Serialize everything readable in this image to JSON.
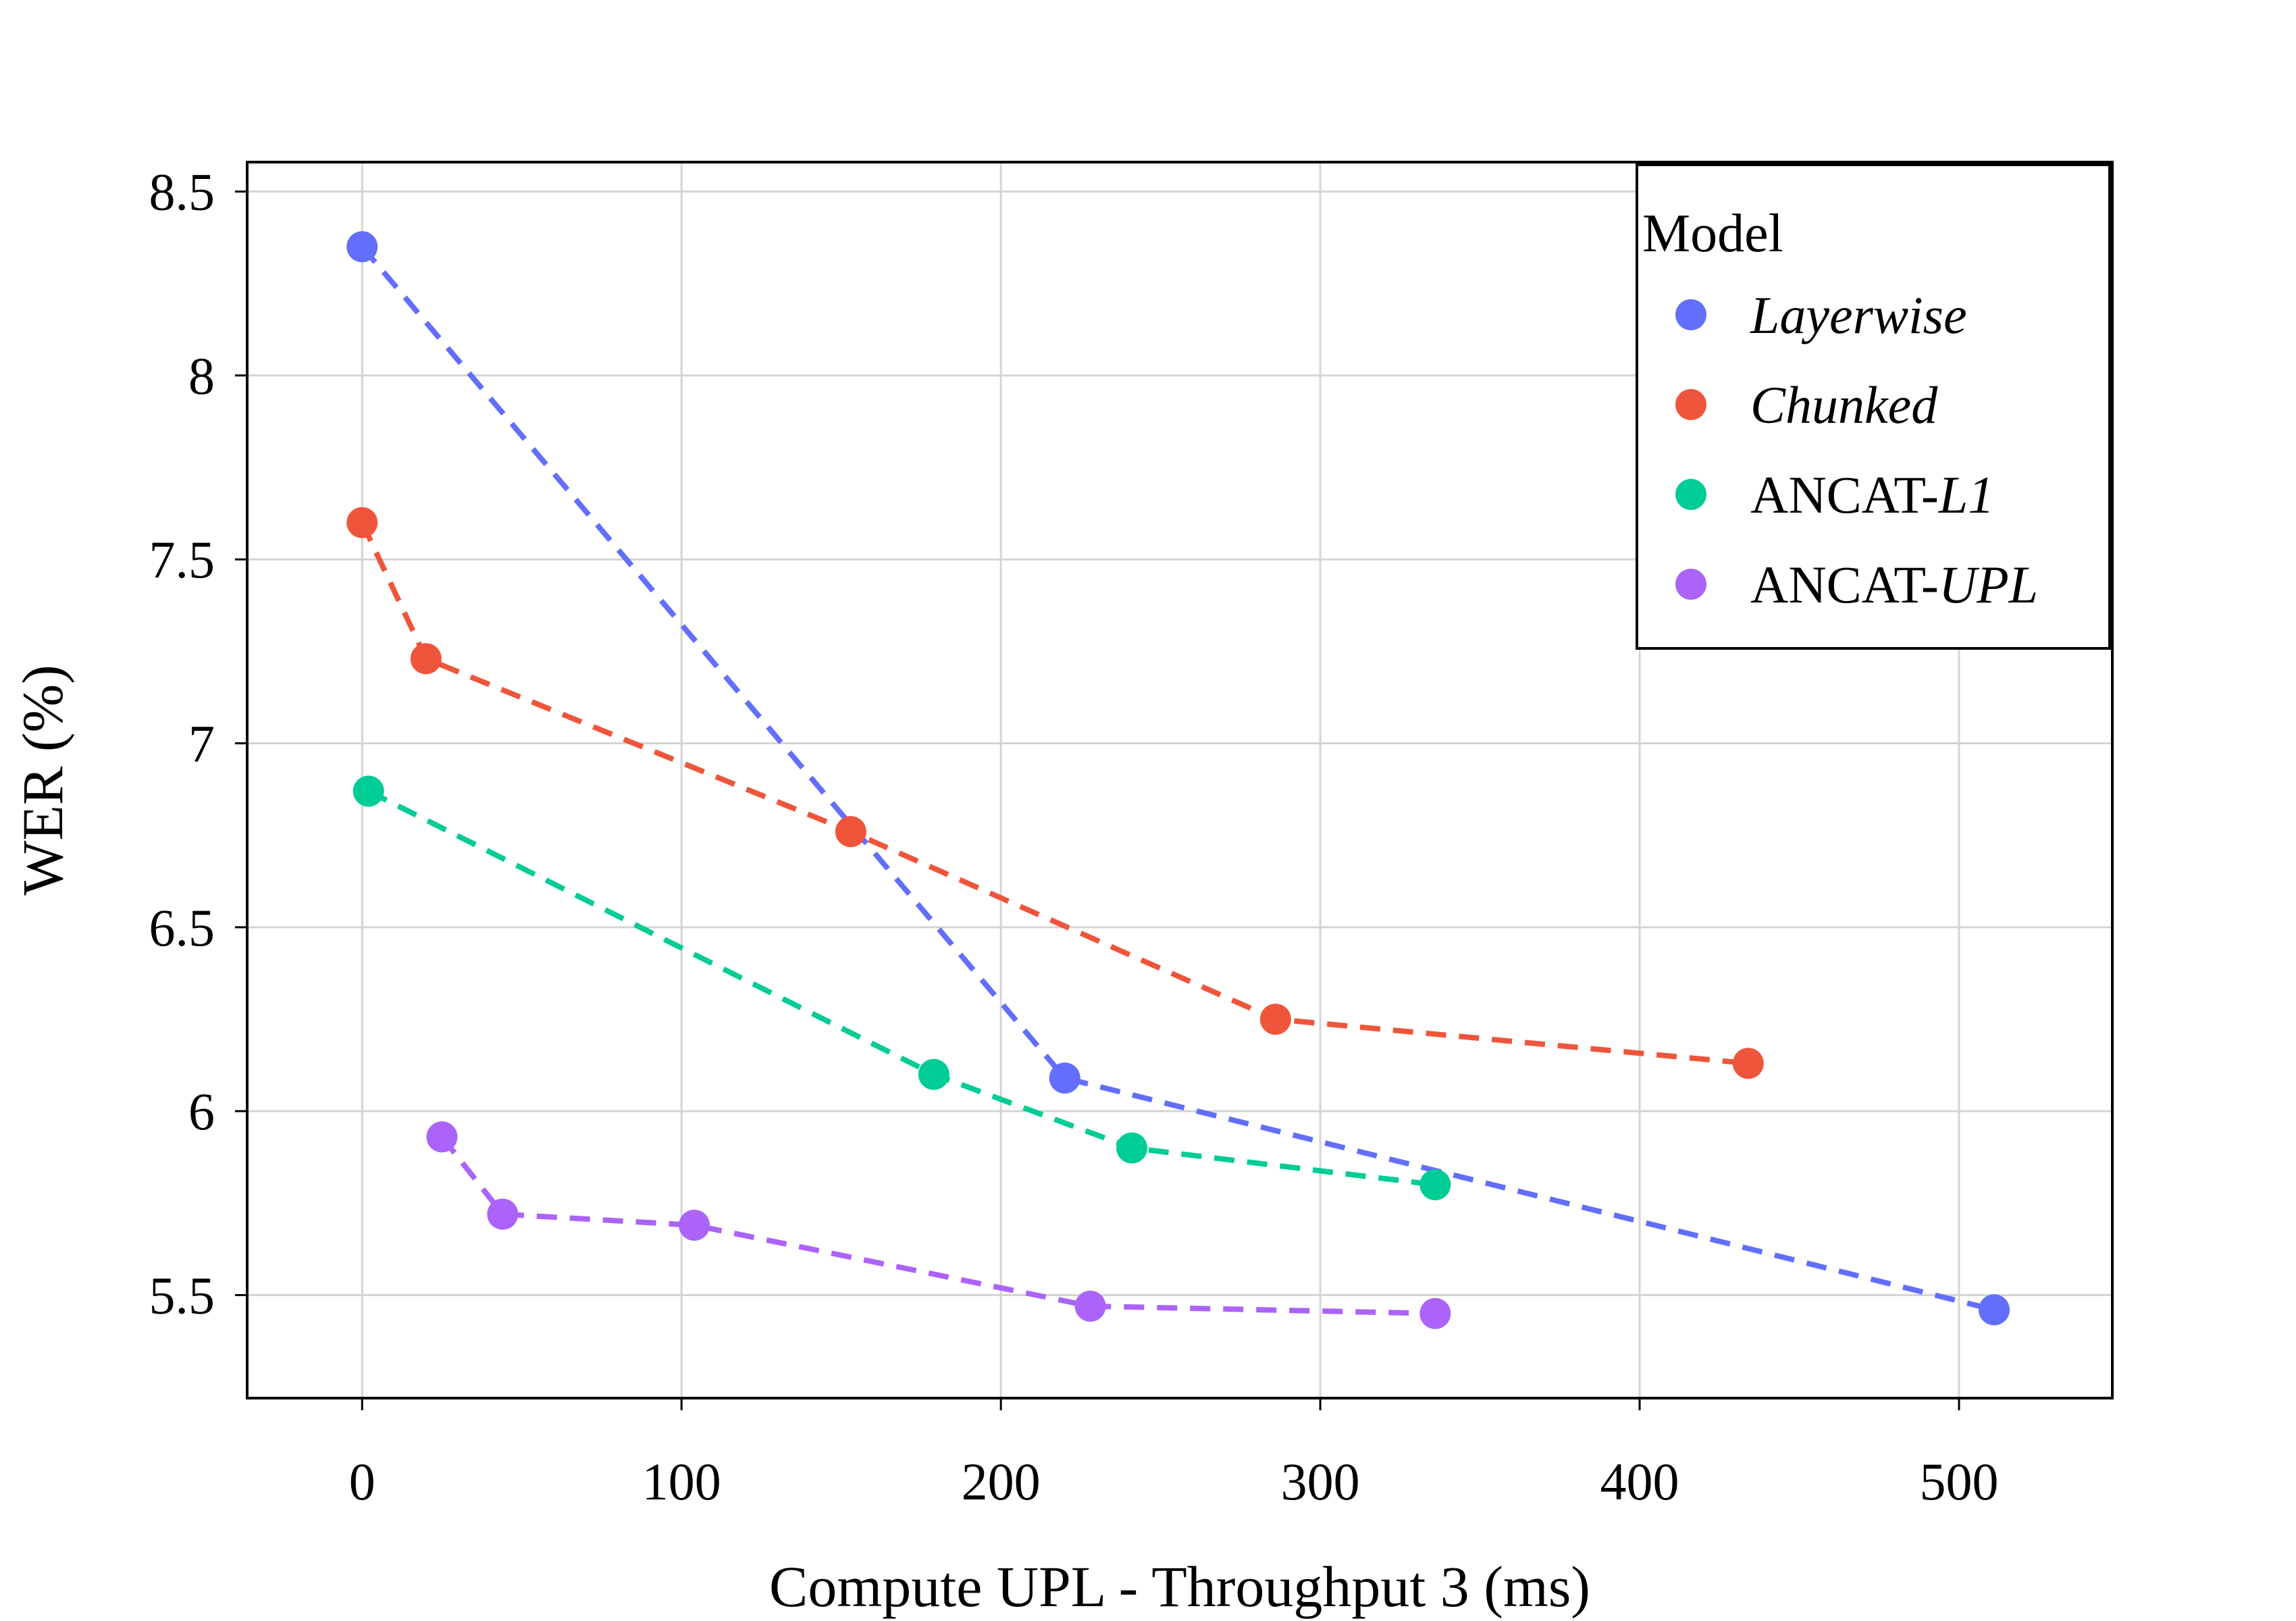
{
  "chart_data": {
    "type": "line",
    "title": "",
    "xlabel": "Compute UPL - Throughput 3 (ms)",
    "ylabel": "WER (%)",
    "xlim": [
      -36,
      548
    ],
    "ylim": [
      5.22,
      8.58
    ],
    "xticks": [
      0,
      100,
      200,
      300,
      400,
      500
    ],
    "xtick_labels": [
      "0",
      "100",
      "200",
      "300",
      "400",
      "500"
    ],
    "yticks": [
      5.5,
      6,
      6.5,
      7,
      7.5,
      8,
      8.5
    ],
    "ytick_labels": [
      "5.5",
      "6",
      "6.5",
      "7",
      "7.5",
      "8",
      "8.5"
    ],
    "grid": true,
    "line_style": "dashed",
    "legend": {
      "title": "Model",
      "position": "top-right",
      "entries": [
        {
          "prefix": "",
          "italic": "Layerwise"
        },
        {
          "prefix": "",
          "italic": "Chunked"
        },
        {
          "prefix": "ANCAT-",
          "italic": "L1"
        },
        {
          "prefix": "ANCAT-",
          "italic": "UPL"
        }
      ]
    },
    "series": [
      {
        "name": "Layerwise",
        "color": "#636EFA",
        "x": [
          0,
          220,
          511
        ],
        "y": [
          8.35,
          6.09,
          5.46
        ]
      },
      {
        "name": "Chunked",
        "color": "#EF553B",
        "x": [
          0,
          20,
          153,
          286,
          434
        ],
        "y": [
          7.6,
          7.23,
          6.76,
          6.25,
          6.13
        ]
      },
      {
        "name": "ANCAT-L1",
        "color": "#00CC96",
        "x": [
          2,
          179,
          241,
          336
        ],
        "y": [
          6.87,
          6.1,
          5.9,
          5.8
        ]
      },
      {
        "name": "ANCAT-UPL",
        "color": "#AB63FA",
        "x": [
          25,
          44,
          104,
          228,
          336
        ],
        "y": [
          5.93,
          5.72,
          5.69,
          5.47,
          5.45
        ]
      }
    ]
  }
}
